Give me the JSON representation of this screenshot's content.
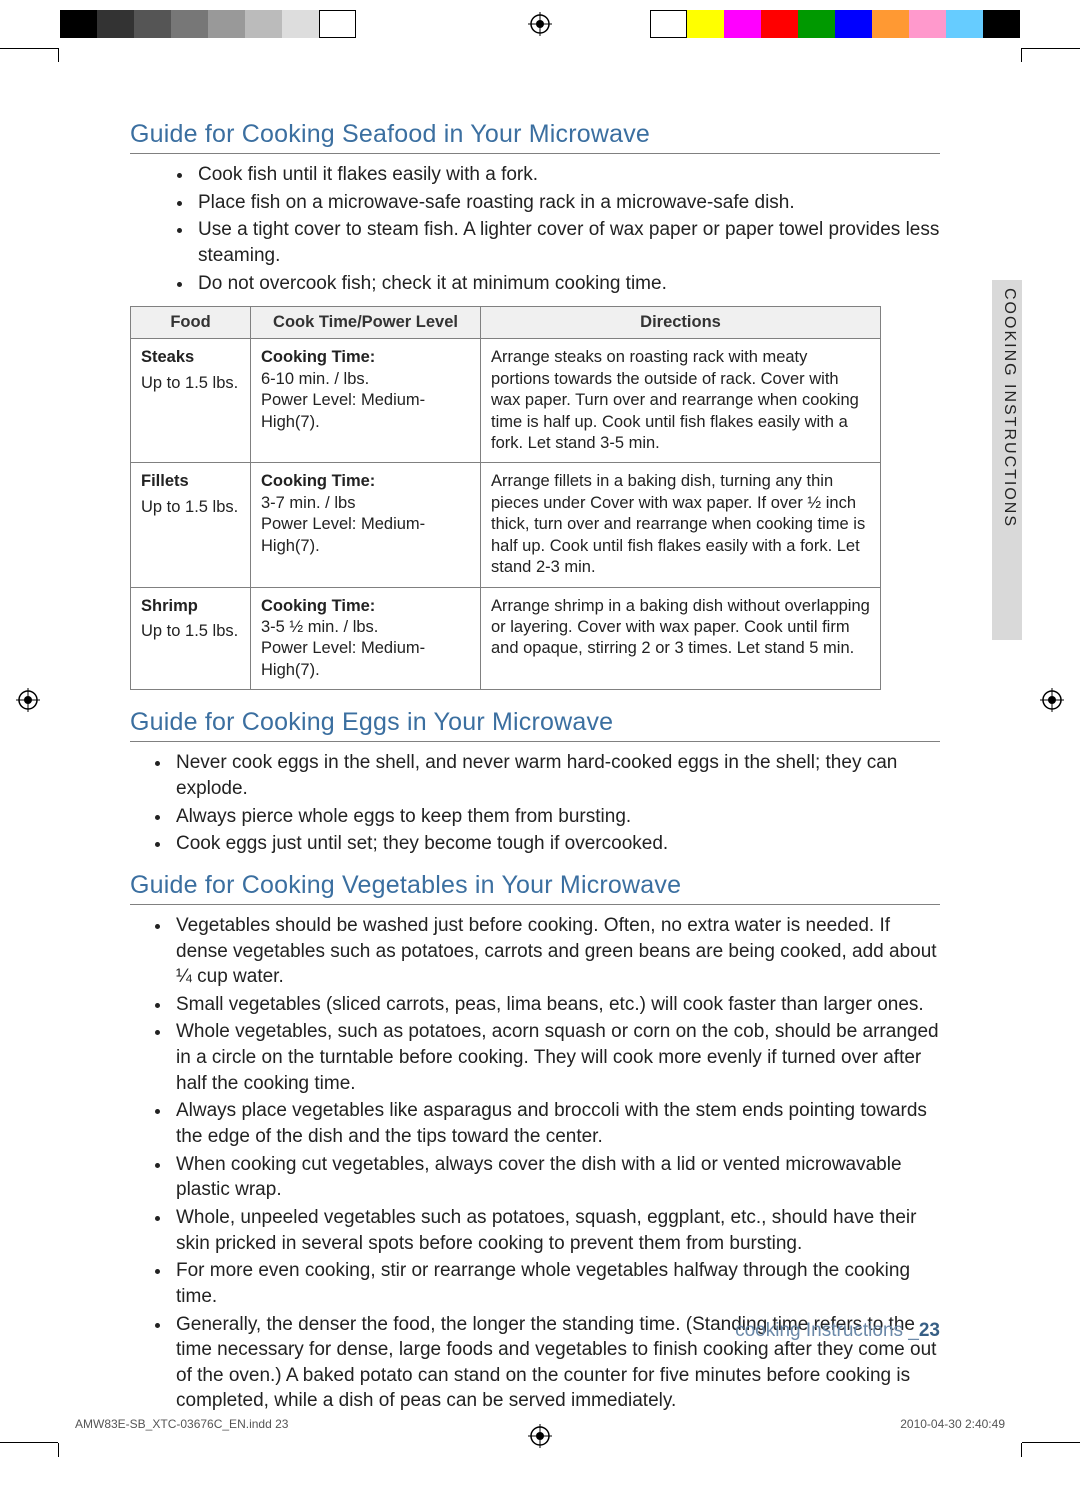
{
  "print_bars": {
    "gray_swatches": [
      "#000000",
      "#333333",
      "#555555",
      "#777777",
      "#999999",
      "#bbbbbb",
      "#dddddd",
      "#ffffff"
    ],
    "color_swatches": [
      "#ffffff",
      "#ffff00",
      "#ff00ff",
      "#ff0000",
      "#009900",
      "#0000ff",
      "#ff9933",
      "#ff99cc",
      "#66ccff",
      "#000000"
    ]
  },
  "side_tab": "COOKING INSTRUCTIONS",
  "sections": {
    "seafood": {
      "title": "Guide for Cooking Seafood in Your Microwave",
      "tips": [
        "Cook fish until it flakes easily with a fork.",
        "Place fish on a microwave-safe roasting rack in a microwave-safe dish.",
        "Use a tight cover to steam fish. A lighter cover of wax paper or paper towel provides less steaming.",
        "Do not overcook fish; check it at minimum cooking time."
      ],
      "table": {
        "headers": [
          "Food",
          "Cook Time/Power Level",
          "Directions"
        ],
        "rows": [
          {
            "food": "Steaks",
            "qty": "Up to 1.5 lbs.",
            "ct_label": "Cooking Time:",
            "ct_value": "6-10 min. / lbs.",
            "power": "Power Level: Medium-High(7).",
            "directions": "Arrange steaks on roasting rack with meaty portions towards the outside of rack. Cover with wax paper. Turn over and rearrange when cooking time is half up. Cook until fish flakes easily with a fork. Let stand 3-5 min."
          },
          {
            "food": "Fillets",
            "qty": "Up to 1.5 lbs.",
            "ct_label": "Cooking Time:",
            "ct_value": "3-7 min. / lbs",
            "power": "Power Level: Medium-High(7).",
            "directions": "Arrange fillets in a baking dish, turning any thin pieces under Cover with wax paper. If over ½ inch thick, turn over and rearrange when cooking time is half up. Cook until fish flakes easily with a fork. Let stand 2-3 min."
          },
          {
            "food": "Shrimp",
            "qty": "Up to 1.5 lbs.",
            "ct_label": "Cooking Time:",
            "ct_value": "3-5 ½ min. / lbs.",
            "power": "Power Level: Medium-High(7).",
            "directions": "Arrange shrimp in a baking dish without overlapping or layering. Cover with wax paper. Cook until firm and opaque, stirring 2 or 3 times. Let stand 5 min."
          }
        ]
      }
    },
    "eggs": {
      "title": "Guide for Cooking Eggs in Your Microwave",
      "tips": [
        "Never cook eggs in the shell, and never warm hard-cooked eggs in the shell; they can explode.",
        "Always pierce whole eggs to keep them from bursting.",
        "Cook eggs just until set; they become tough if overcooked."
      ]
    },
    "veg": {
      "title": "Guide for Cooking Vegetables in Your Microwave",
      "tips": [
        "Vegetables should be washed just before cooking. Often, no extra water is needed. If dense vegetables such as potatoes, carrots and green beans are being cooked, add about ¼ cup water.",
        "Small vegetables (sliced carrots, peas, lima beans, etc.) will cook faster than larger ones.",
        "Whole vegetables, such as potatoes, acorn squash or corn on the cob, should be arranged in a circle on the turntable before cooking. They will cook more evenly if turned over after half the cooking time.",
        "Always place vegetables like asparagus and broccoli with the stem ends pointing towards the edge of the dish and the tips toward the center.",
        "When cooking cut vegetables, always cover the dish with a lid or vented microwavable plastic wrap.",
        "Whole, unpeeled vegetables such as potatoes, squash, eggplant, etc., should have their skin pricked in several spots before cooking to prevent them from bursting.",
        "For more even cooking, stir or rearrange whole vegetables halfway through the cooking time.",
        "Generally, the denser the food, the longer the standing time. (Standing time refers to the time necessary for dense, large foods and vegetables to finish cooking after they come out of the oven.) A baked potato can stand on the counter for five minutes before cooking is completed, while a dish of peas can be served immediately."
      ]
    }
  },
  "footer": {
    "running_text": "cooking Instructions _",
    "page_number": "23",
    "indd": "AMW83E-SB_XTC-03676C_EN.indd   23",
    "timestamp": "2010-04-30    2:40:49"
  }
}
